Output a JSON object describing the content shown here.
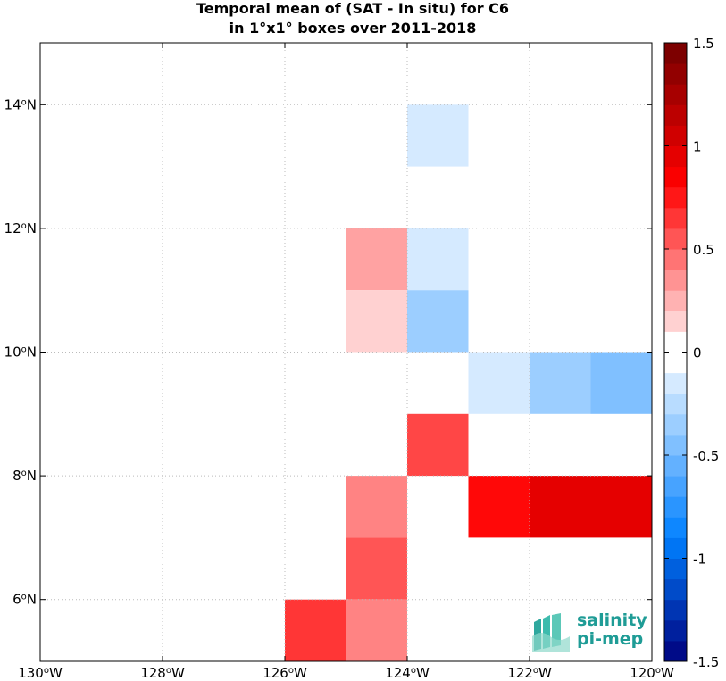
{
  "title_line1": "Temporal mean of (SAT - In situ) for C6",
  "title_line2": "in 1°x1° boxes over 2011-2018",
  "logo": {
    "line1": "salinity",
    "line2": "pi-mep",
    "color": "#1f9c96"
  },
  "chart_data": {
    "type": "heatmap",
    "xlim": [
      -130,
      -120
    ],
    "ylim": [
      5,
      15
    ],
    "x_ticks": [
      {
        "value": -130,
        "label": "130°W"
      },
      {
        "value": -128,
        "label": "128°W"
      },
      {
        "value": -126,
        "label": "126°W"
      },
      {
        "value": -124,
        "label": "124°W"
      },
      {
        "value": -122,
        "label": "122°W"
      },
      {
        "value": -120,
        "label": "120°W"
      }
    ],
    "y_ticks": [
      {
        "value": 6,
        "label": "6°N"
      },
      {
        "value": 8,
        "label": "8°N"
      },
      {
        "value": 10,
        "label": "10°N"
      },
      {
        "value": 12,
        "label": "12°N"
      },
      {
        "value": 14,
        "label": "14°N"
      }
    ],
    "grid": true,
    "cells": [
      {
        "lon": -124,
        "lat": 13,
        "value": -0.15
      },
      {
        "lon": -125,
        "lat": 11,
        "value": 0.3
      },
      {
        "lon": -124,
        "lat": 11,
        "value": -0.15
      },
      {
        "lon": -125,
        "lat": 10,
        "value": 0.15
      },
      {
        "lon": -124,
        "lat": 10,
        "value": -0.35
      },
      {
        "lon": -123,
        "lat": 9,
        "value": -0.15
      },
      {
        "lon": -122,
        "lat": 9,
        "value": -0.35
      },
      {
        "lon": -121,
        "lat": 9,
        "value": -0.45
      },
      {
        "lon": -124,
        "lat": 8,
        "value": 0.6
      },
      {
        "lon": -125,
        "lat": 7,
        "value": 0.4
      },
      {
        "lon": -123,
        "lat": 7,
        "value": 0.8
      },
      {
        "lon": -122,
        "lat": 7,
        "value": 0.95
      },
      {
        "lon": -121,
        "lat": 7,
        "value": 0.95
      },
      {
        "lon": -125,
        "lat": 6,
        "value": 0.55
      },
      {
        "lon": -126,
        "lat": 5,
        "value": 0.65
      },
      {
        "lon": -125,
        "lat": 5,
        "value": 0.4
      }
    ],
    "colorbar": {
      "range": [
        -1.5,
        1.5
      ],
      "step": 0.1,
      "ticks": [
        {
          "value": 1.5,
          "label": "1.5"
        },
        {
          "value": 1,
          "label": "1"
        },
        {
          "value": 0.5,
          "label": "0.5"
        },
        {
          "value": 0,
          "label": "0"
        },
        {
          "value": -0.5,
          "label": "-0.5"
        },
        {
          "value": -1,
          "label": "-1"
        },
        {
          "value": -1.5,
          "label": "-1.5"
        }
      ]
    }
  }
}
